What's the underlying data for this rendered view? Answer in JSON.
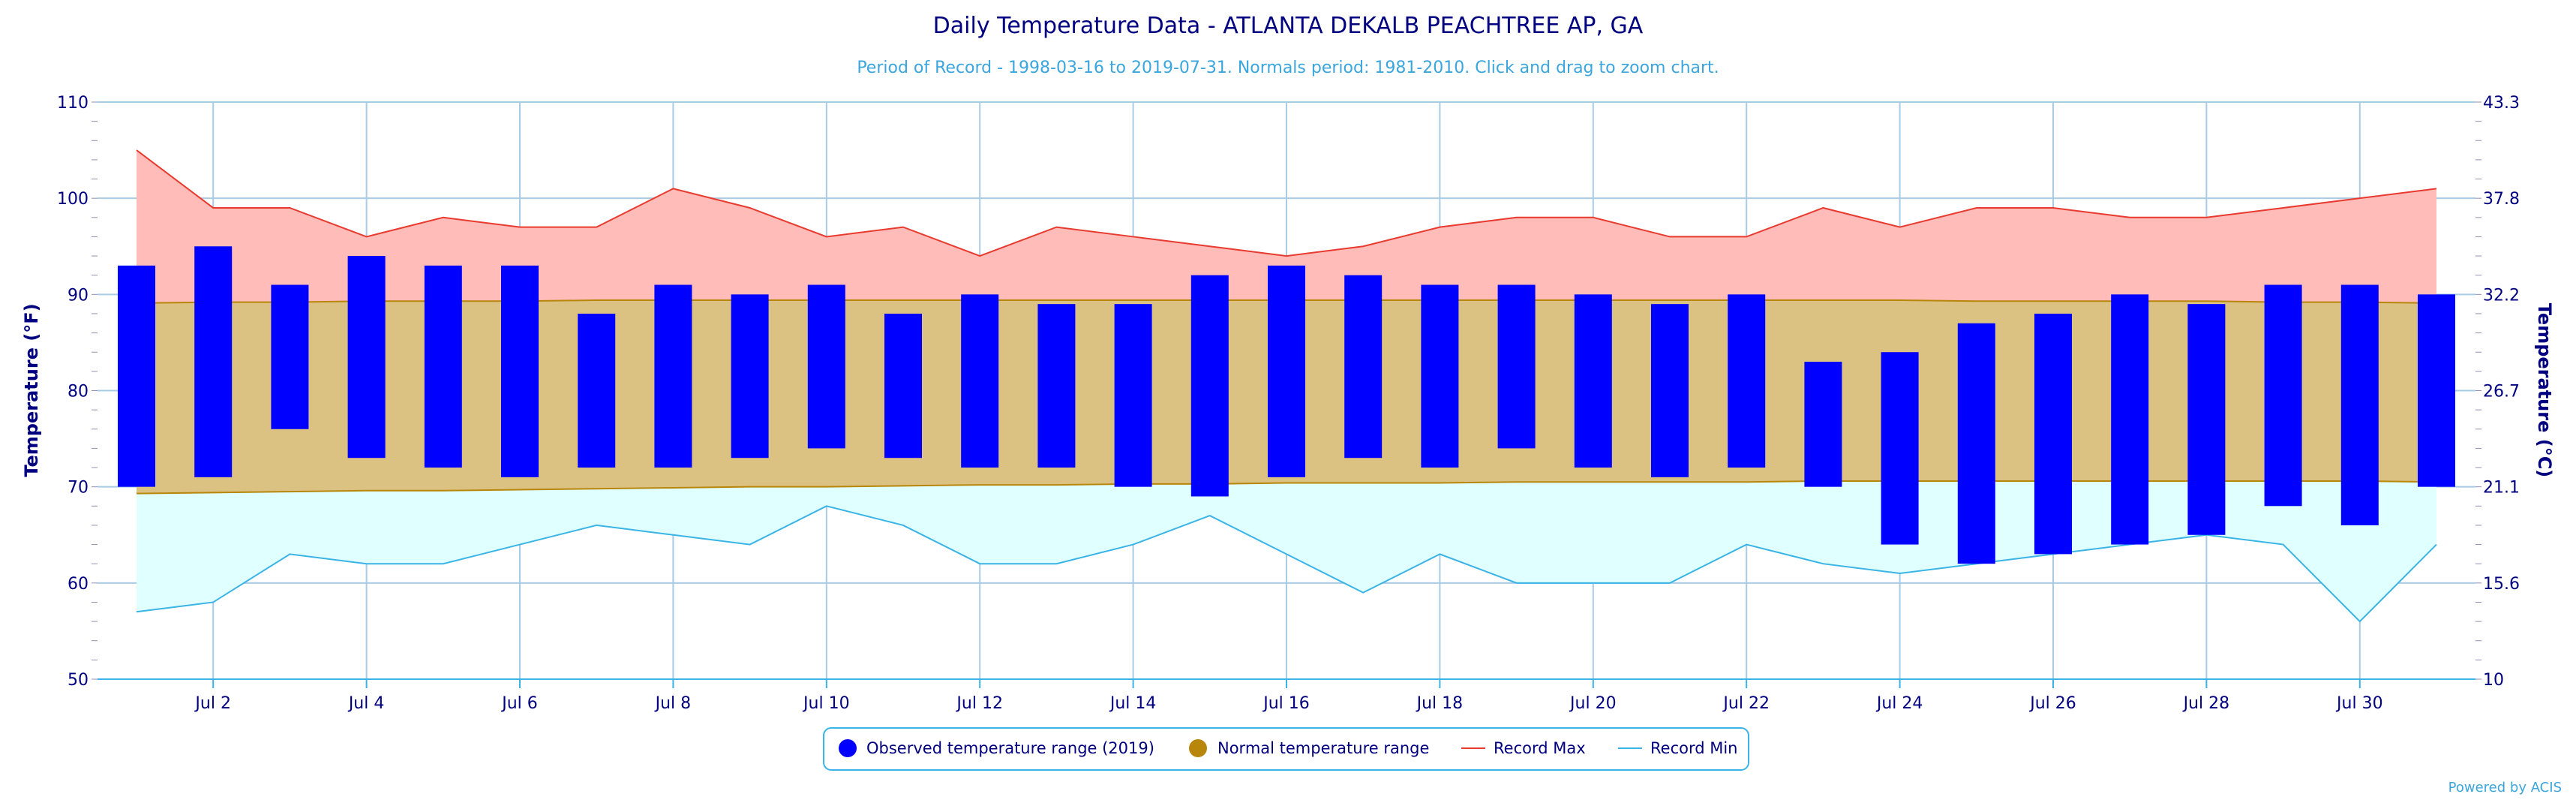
{
  "chart_data": {
    "type": "bar",
    "title": "Daily Temperature Data - ATLANTA DEKALB PEACHTREE AP, GA",
    "subtitle": "Period of Record - 1998-03-16 to 2019-07-31. Normals period: 1981-2010. Click and drag to zoom chart.",
    "ylabel": "Temperature (°F)",
    "ylabel_right": "Temperature (°C)",
    "ylim": [
      50,
      110
    ],
    "y_ticks": [
      50,
      60,
      70,
      80,
      90,
      100,
      110
    ],
    "y_ticks_right": [
      "10",
      "15.6",
      "21.1",
      "26.7",
      "32.2",
      "37.8",
      "43.3"
    ],
    "x_tick_labels": [
      {
        "day": 2,
        "label": "Jul 2"
      },
      {
        "day": 4,
        "label": "Jul 4"
      },
      {
        "day": 6,
        "label": "Jul 6"
      },
      {
        "day": 8,
        "label": "Jul 8"
      },
      {
        "day": 10,
        "label": "Jul 10"
      },
      {
        "day": 12,
        "label": "Jul 12"
      },
      {
        "day": 14,
        "label": "Jul 14"
      },
      {
        "day": 16,
        "label": "Jul 16"
      },
      {
        "day": 18,
        "label": "Jul 18"
      },
      {
        "day": 20,
        "label": "Jul 20"
      },
      {
        "day": 22,
        "label": "Jul 22"
      },
      {
        "day": 24,
        "label": "Jul 24"
      },
      {
        "day": 26,
        "label": "Jul 26"
      },
      {
        "day": 28,
        "label": "Jul 28"
      },
      {
        "day": 30,
        "label": "Jul 30"
      }
    ],
    "days": [
      1,
      2,
      3,
      4,
      5,
      6,
      7,
      8,
      9,
      10,
      11,
      12,
      13,
      14,
      15,
      16,
      17,
      18,
      19,
      20,
      21,
      22,
      23,
      24,
      25,
      26,
      27,
      28,
      29,
      30,
      31
    ],
    "series": [
      {
        "name": "Observed temperature range (2019)",
        "low": [
          70,
          71,
          76,
          73,
          72,
          71,
          72,
          72,
          73,
          74,
          73,
          72,
          72,
          70,
          69,
          71,
          73,
          72,
          74,
          72,
          71,
          72,
          70,
          64,
          62,
          63,
          64,
          65,
          68,
          66,
          70
        ],
        "high": [
          93,
          95,
          91,
          94,
          93,
          93,
          88,
          91,
          90,
          91,
          88,
          90,
          89,
          89,
          92,
          93,
          92,
          91,
          91,
          90,
          89,
          90,
          83,
          84,
          87,
          88,
          90,
          89,
          91,
          91,
          90
        ]
      },
      {
        "name": "Normal temperature range",
        "low": [
          69.3,
          69.4,
          69.5,
          69.6,
          69.6,
          69.7,
          69.8,
          69.9,
          70.0,
          70.0,
          70.1,
          70.2,
          70.2,
          70.3,
          70.3,
          70.4,
          70.4,
          70.4,
          70.5,
          70.5,
          70.5,
          70.5,
          70.6,
          70.6,
          70.6,
          70.6,
          70.6,
          70.6,
          70.6,
          70.6,
          70.5
        ],
        "high": [
          89.1,
          89.2,
          89.2,
          89.3,
          89.3,
          89.3,
          89.4,
          89.4,
          89.4,
          89.4,
          89.4,
          89.4,
          89.4,
          89.4,
          89.4,
          89.4,
          89.4,
          89.4,
          89.4,
          89.4,
          89.4,
          89.4,
          89.4,
          89.4,
          89.3,
          89.3,
          89.3,
          89.3,
          89.2,
          89.2,
          89.1
        ]
      },
      {
        "name": "Record Max",
        "values": [
          105,
          99,
          99,
          96,
          98,
          97,
          97,
          101,
          99,
          96,
          97,
          94,
          97,
          96,
          95,
          94,
          95,
          97,
          98,
          98,
          96,
          96,
          99,
          97,
          99,
          99,
          98,
          98,
          99,
          100,
          101
        ]
      },
      {
        "name": "Record Min",
        "values": [
          57,
          58,
          63,
          62,
          62,
          64,
          66,
          65,
          64,
          68,
          66,
          62,
          62,
          64,
          67,
          63,
          59,
          63,
          60,
          60,
          60,
          64,
          62,
          61,
          62,
          63,
          64,
          65,
          64,
          56,
          64
        ]
      }
    ],
    "legend_position": "bottom-center",
    "grid": true,
    "colors": {
      "observed": "#0000ff",
      "normal_fill": "#dcc282",
      "normal_line": "#b8860b",
      "record_max_fill": "#ffbcb8",
      "record_max_line": "#e83a2e",
      "record_min_fill": "#e0ffff",
      "record_min_line": "#3ab4e6",
      "axis_text": "#000080",
      "grid": "#a8cbe6"
    }
  },
  "credit": "Powered by ACIS"
}
